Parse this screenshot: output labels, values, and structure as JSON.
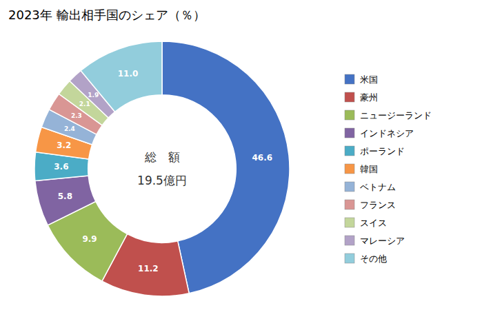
{
  "chart_data": {
    "type": "pie",
    "title": "2023年 輸出相手国のシェア（％）",
    "annotations": [
      "総　額",
      "19.5億円"
    ],
    "categories": [
      "米国",
      "豪州",
      "ニュージーランド",
      "インドネシア",
      "ポーランド",
      "韓国",
      "ベトナム",
      "フランス",
      "スイス",
      "マレーシア",
      "その他"
    ],
    "values": [
      46.6,
      11.2,
      9.9,
      5.8,
      3.6,
      3.2,
      2.4,
      2.3,
      2.1,
      1.9,
      11.0
    ],
    "value_labels": [
      "46.6",
      "11.2",
      "9.9",
      "5.8",
      "3.6",
      "3.2",
      "2.4",
      "2.3",
      "2.1",
      "1.9",
      "11.0"
    ],
    "colors": [
      "#4472C4",
      "#C0504D",
      "#9BBB59",
      "#8064A2",
      "#4BACC6",
      "#F79646",
      "#95B3D7",
      "#D99694",
      "#C3D69B",
      "#B2A2C7",
      "#92CDDC"
    ],
    "data_labels": true,
    "legend": "right"
  }
}
